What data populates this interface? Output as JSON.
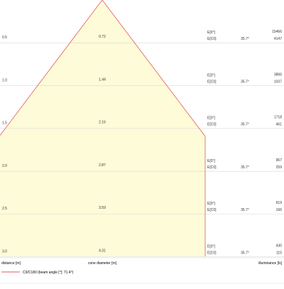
{
  "chart_data": {
    "type": "area",
    "title": "",
    "xlabel": "distance [m]",
    "xlabel_center": "cone diameter [m]",
    "ylabel": "illuminance [lx]",
    "legend": "C0/C180 (beam angle [°]: 71.4°)",
    "rows": [
      {
        "distance": "0.5",
        "diameter": "0.72",
        "e0_label": "E[0°]",
        "ec_label": "E[C0]",
        "angle": "35.7°",
        "e0": "15466",
        "ec": "4147"
      },
      {
        "distance": "1.0",
        "diameter": "1.44",
        "e0_label": "E[0°]",
        "ec_label": "E[C0]",
        "angle": "35.7°",
        "e0": "3866",
        "ec": "1037"
      },
      {
        "distance": "1.5",
        "diameter": "2.16",
        "e0_label": "E[0°]",
        "ec_label": "E[C0]",
        "angle": "35.7°",
        "e0": "1718",
        "ec": "461"
      },
      {
        "distance": "2.0",
        "diameter": "2.87",
        "e0_label": "E[0°]",
        "ec_label": "E[C0]",
        "angle": "35.7°",
        "e0": "967",
        "ec": "259"
      },
      {
        "distance": "2.5",
        "diameter": "3.59",
        "e0_label": "E[0°]",
        "ec_label": "E[C0]",
        "angle": "35.7°",
        "e0": "619",
        "ec": "166"
      },
      {
        "distance": "3.0",
        "diameter": "4.31",
        "e0_label": "E[0°]",
        "ec_label": "E[C0]",
        "angle": "35.7°",
        "e0": "430",
        "ec": "115"
      }
    ],
    "colors": {
      "cone_fill": "#fdfbd8",
      "cone_stroke": "#e35a5a",
      "grid": "#d9d9d9",
      "text": "#333333"
    }
  }
}
